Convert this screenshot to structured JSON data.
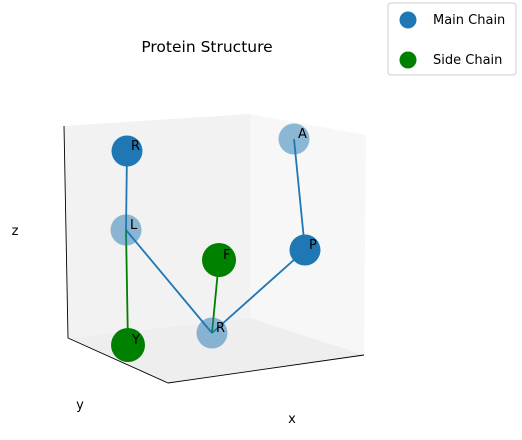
{
  "chart_data": {
    "type": "scatter",
    "projection": "3d",
    "title": "Protein Structure",
    "xlabel": "x",
    "ylabel": "y",
    "zlabel": "z",
    "legend": {
      "placement": "top-right",
      "entries": [
        {
          "name": "Main Chain",
          "color": "#1f77b4"
        },
        {
          "name": "Side Chain",
          "color": "#008000"
        }
      ]
    },
    "residues": [
      {
        "label": "R",
        "chain": "main",
        "depth": "near"
      },
      {
        "label": "L",
        "chain": "main",
        "depth": "far"
      },
      {
        "label": "Y",
        "chain": "side",
        "depth": "near"
      },
      {
        "label": "R",
        "chain": "main",
        "depth": "far"
      },
      {
        "label": "F",
        "chain": "side",
        "depth": "near"
      },
      {
        "label": "P",
        "chain": "main",
        "depth": "near"
      },
      {
        "label": "A",
        "chain": "main",
        "depth": "far"
      }
    ],
    "bonds": [
      {
        "from": 0,
        "to": 1,
        "chain": "main"
      },
      {
        "from": 1,
        "to": 3,
        "chain": "main"
      },
      {
        "from": 3,
        "to": 5,
        "chain": "main"
      },
      {
        "from": 5,
        "to": 6,
        "chain": "main"
      },
      {
        "from": 1,
        "to": 2,
        "chain": "side"
      },
      {
        "from": 3,
        "to": 4,
        "chain": "side"
      }
    ],
    "colors": {
      "main": "#1f77b4",
      "side": "#008000"
    },
    "grid": false
  }
}
